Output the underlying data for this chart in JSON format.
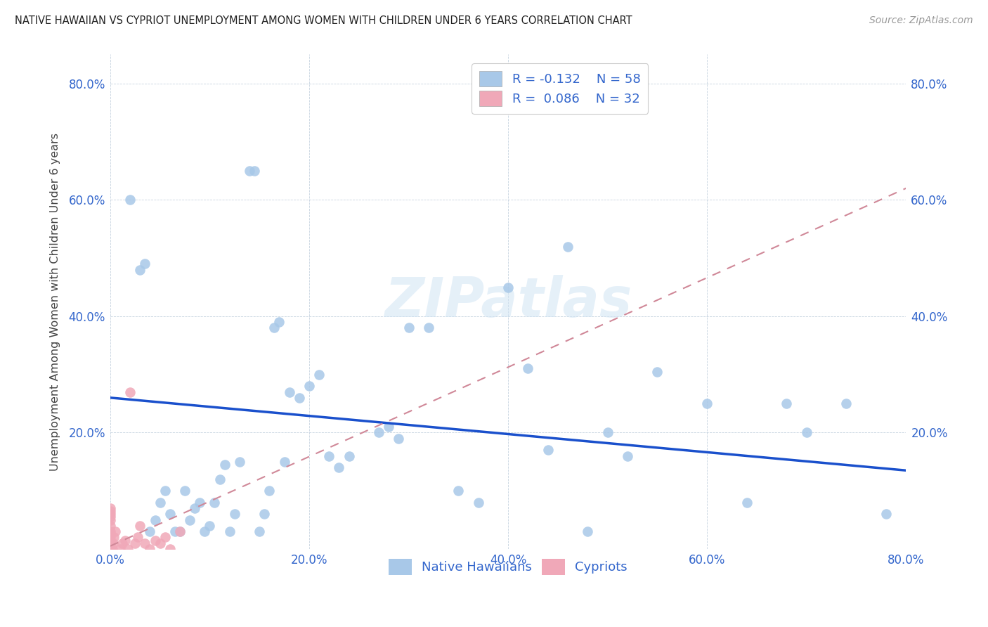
{
  "title": "NATIVE HAWAIIAN VS CYPRIOT UNEMPLOYMENT AMONG WOMEN WITH CHILDREN UNDER 6 YEARS CORRELATION CHART",
  "source": "Source: ZipAtlas.com",
  "ylabel": "Unemployment Among Women with Children Under 6 years",
  "xlim": [
    0.0,
    0.8
  ],
  "ylim": [
    0.0,
    0.85
  ],
  "x_ticks": [
    0.0,
    0.2,
    0.4,
    0.6,
    0.8
  ],
  "y_ticks": [
    0.0,
    0.2,
    0.4,
    0.6,
    0.8
  ],
  "x_tick_labels": [
    "0.0%",
    "20.0%",
    "40.0%",
    "60.0%",
    "80.0%"
  ],
  "y_tick_labels_left": [
    "",
    "20.0%",
    "40.0%",
    "60.0%",
    "80.0%"
  ],
  "y_tick_labels_right": [
    "",
    "20.0%",
    "40.0%",
    "60.0%",
    "80.0%"
  ],
  "legend_labels": [
    "Native Hawaiians",
    "Cypriots"
  ],
  "color_native": "#a8c8e8",
  "color_cypriot": "#f0a8b8",
  "color_native_line": "#1a50cc",
  "color_cypriot_line": "#d08898",
  "watermark": "ZIPatlas",
  "native_x": [
    0.02,
    0.03,
    0.035,
    0.04,
    0.045,
    0.05,
    0.055,
    0.06,
    0.065,
    0.07,
    0.075,
    0.08,
    0.085,
    0.09,
    0.095,
    0.1,
    0.105,
    0.11,
    0.115,
    0.12,
    0.125,
    0.13,
    0.14,
    0.145,
    0.15,
    0.155,
    0.16,
    0.165,
    0.17,
    0.175,
    0.18,
    0.19,
    0.2,
    0.21,
    0.22,
    0.23,
    0.24,
    0.27,
    0.28,
    0.29,
    0.3,
    0.32,
    0.35,
    0.37,
    0.4,
    0.42,
    0.44,
    0.46,
    0.48,
    0.5,
    0.52,
    0.55,
    0.6,
    0.64,
    0.68,
    0.7,
    0.74,
    0.78
  ],
  "native_y": [
    0.6,
    0.48,
    0.49,
    0.03,
    0.05,
    0.08,
    0.1,
    0.06,
    0.03,
    0.03,
    0.1,
    0.05,
    0.07,
    0.08,
    0.03,
    0.04,
    0.08,
    0.12,
    0.145,
    0.03,
    0.06,
    0.15,
    0.65,
    0.65,
    0.03,
    0.06,
    0.1,
    0.38,
    0.39,
    0.15,
    0.27,
    0.26,
    0.28,
    0.3,
    0.16,
    0.14,
    0.16,
    0.2,
    0.21,
    0.19,
    0.38,
    0.38,
    0.1,
    0.08,
    0.45,
    0.31,
    0.17,
    0.52,
    0.03,
    0.2,
    0.16,
    0.305,
    0.25,
    0.08,
    0.25,
    0.2,
    0.25,
    0.06
  ],
  "cypriot_x": [
    0.0,
    0.0,
    0.0,
    0.0,
    0.0,
    0.0,
    0.0,
    0.0,
    0.0,
    0.0,
    0.0,
    0.0,
    0.0,
    0.002,
    0.003,
    0.004,
    0.005,
    0.01,
    0.012,
    0.015,
    0.018,
    0.02,
    0.025,
    0.028,
    0.03,
    0.035,
    0.04,
    0.045,
    0.05,
    0.055,
    0.06,
    0.07
  ],
  "cypriot_y": [
    0.0,
    0.0,
    0.01,
    0.015,
    0.02,
    0.025,
    0.03,
    0.04,
    0.05,
    0.055,
    0.06,
    0.065,
    0.07,
    0.0,
    0.01,
    0.02,
    0.03,
    0.0,
    0.01,
    0.015,
    0.0,
    0.27,
    0.01,
    0.02,
    0.04,
    0.01,
    0.0,
    0.015,
    0.01,
    0.02,
    0.0,
    0.03
  ],
  "native_line_x": [
    0.0,
    0.8
  ],
  "native_line_y": [
    0.26,
    0.135
  ],
  "cypriot_line_x": [
    0.0,
    0.8
  ],
  "cypriot_line_y": [
    0.005,
    0.62
  ]
}
